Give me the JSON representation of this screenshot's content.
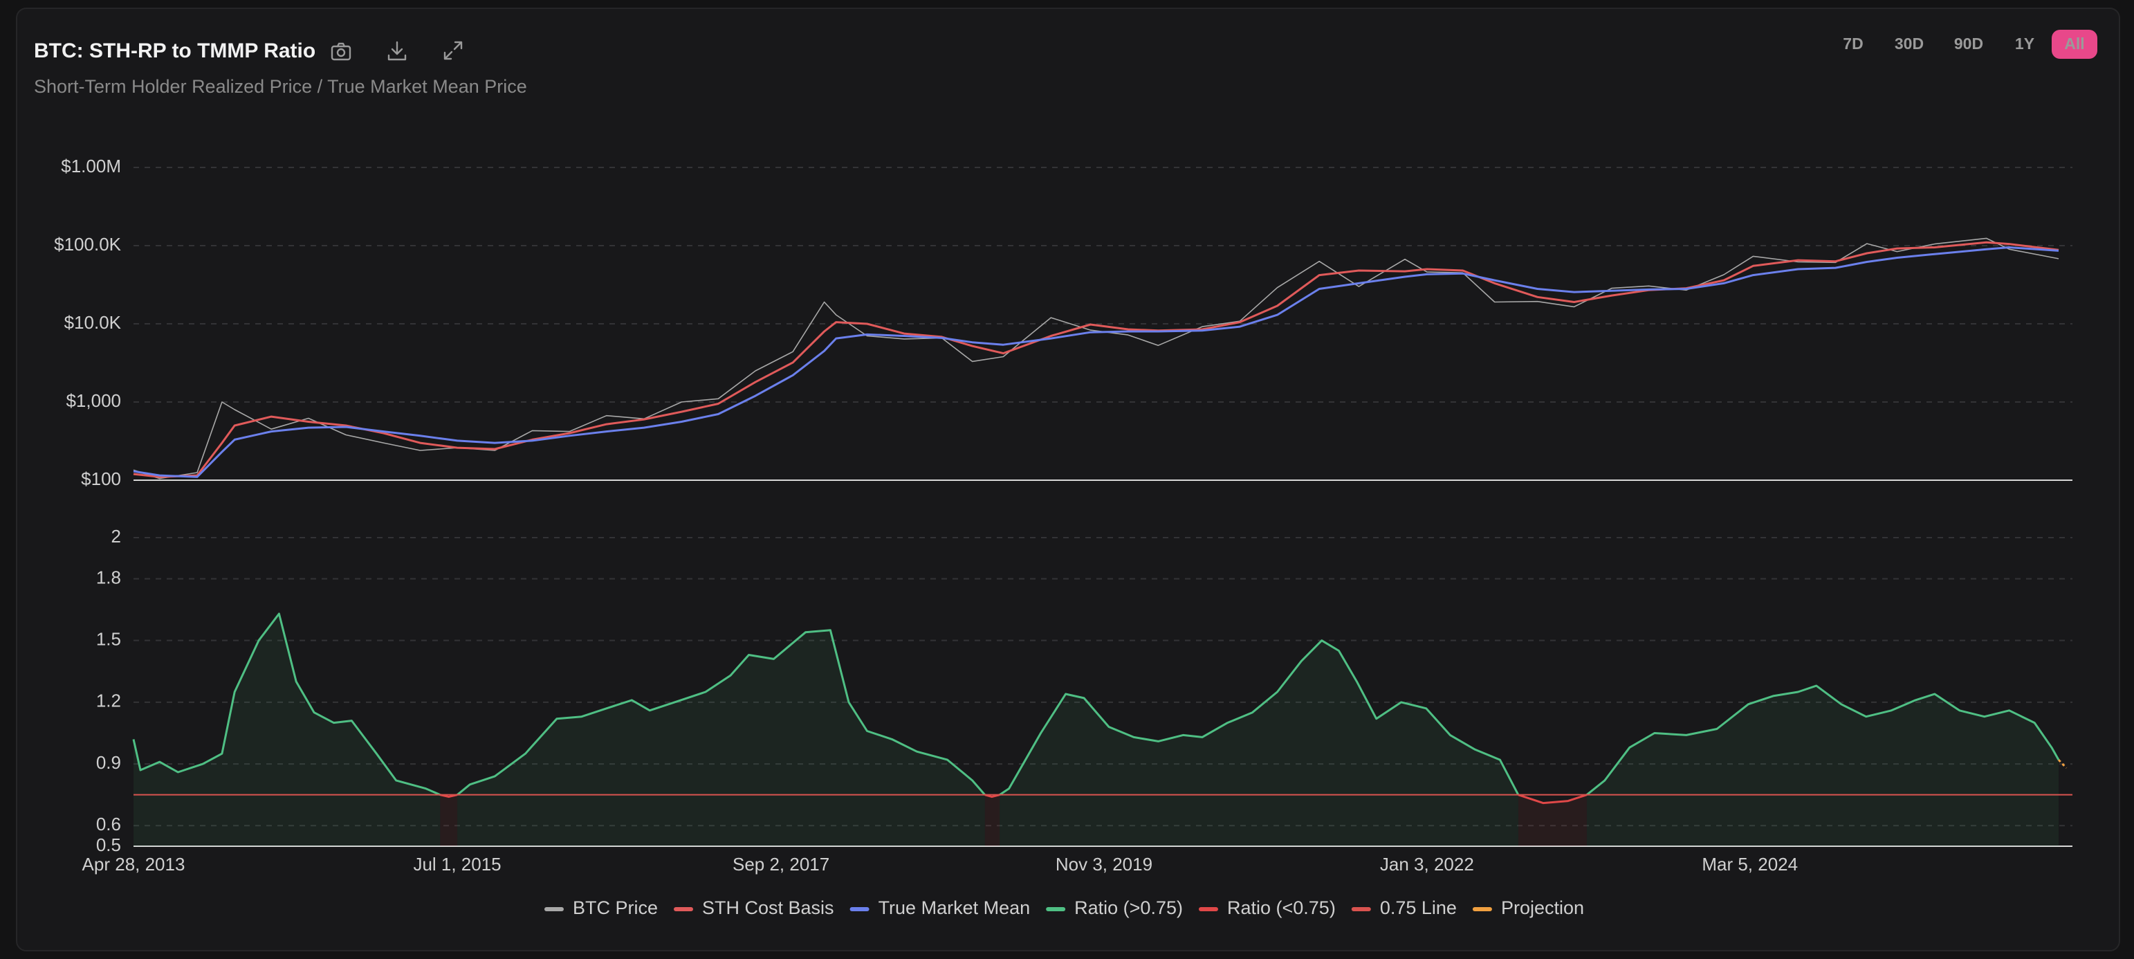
{
  "controls": {
    "ranges": [
      "7D",
      "30D",
      "90D",
      "1Y",
      "All"
    ],
    "selected": 4
  },
  "chart_data": [
    {
      "type": "line",
      "title": "BTC: STH-RP to TMMP Ratio",
      "subtitle": "Short-Term Holder Realized Price / True Market Mean Price",
      "log": true,
      "grid": true,
      "xlim": [
        "2013-04-28",
        "2026-05-05"
      ],
      "ylim": [
        100,
        1000000
      ],
      "yticks": [
        {
          "value": 100,
          "label": "$100"
        },
        {
          "value": 1000,
          "label": "$1,000"
        },
        {
          "value": 10000,
          "label": "$10.0K"
        },
        {
          "value": 100000,
          "label": "$100.0K"
        },
        {
          "value": 1000000,
          "label": "$1.00M"
        }
      ],
      "x": [
        "2013-04-28",
        "2013-07-01",
        "2013-10-01",
        "2013-12-01",
        "2014-01-01",
        "2014-04-01",
        "2014-07-01",
        "2014-10-01",
        "2015-01-01",
        "2015-04-01",
        "2015-07-01",
        "2015-10-01",
        "2016-01-01",
        "2016-04-01",
        "2016-07-01",
        "2016-10-01",
        "2017-01-01",
        "2017-04-01",
        "2017-07-01",
        "2017-10-01",
        "2017-12-17",
        "2018-01-15",
        "2018-04-01",
        "2018-07-01",
        "2018-10-01",
        "2018-12-15",
        "2019-03-01",
        "2019-06-26",
        "2019-10-01",
        "2020-01-01",
        "2020-03-15",
        "2020-07-01",
        "2020-10-01",
        "2021-01-01",
        "2021-04-14",
        "2021-07-20",
        "2021-11-10",
        "2022-01-03",
        "2022-04-01",
        "2022-06-18",
        "2022-10-01",
        "2022-12-30",
        "2023-04-01",
        "2023-07-01",
        "2023-10-01",
        "2024-01-01",
        "2024-03-13",
        "2024-07-01",
        "2024-10-01",
        "2024-12-17",
        "2025-03-01",
        "2025-06-01",
        "2025-10-06",
        "2025-12-01",
        "2026-04-01"
      ],
      "series": [
        {
          "name": "BTC Price",
          "color": "#a8a8a8",
          "values": [
            135,
            105,
            125,
            1000,
            800,
            450,
            620,
            380,
            300,
            240,
            260,
            240,
            430,
            420,
            670,
            610,
            1000,
            1100,
            2500,
            4400,
            19000,
            13000,
            7000,
            6400,
            6600,
            3300,
            3800,
            12000,
            8300,
            7200,
            5300,
            9200,
            10800,
            29000,
            63000,
            30000,
            67000,
            46000,
            45000,
            19000,
            19300,
            16500,
            28500,
            30500,
            27000,
            42500,
            73000,
            62000,
            61000,
            106000,
            84000,
            105000,
            124000,
            90000,
            68000
          ]
        },
        {
          "name": "STH Cost Basis",
          "color": "#e05a5a",
          "values": [
            120,
            110,
            115,
            300,
            500,
            650,
            560,
            500,
            400,
            300,
            260,
            250,
            330,
            400,
            520,
            600,
            750,
            950,
            1800,
            3200,
            8000,
            10500,
            10000,
            7500,
            6800,
            5200,
            4200,
            7000,
            9800,
            8500,
            8200,
            8500,
            10500,
            17000,
            42000,
            48000,
            47000,
            50000,
            48000,
            33000,
            22000,
            19000,
            23000,
            27000,
            28500,
            36000,
            55000,
            65000,
            63000,
            80000,
            92000,
            95000,
            110000,
            105000,
            88000
          ]
        },
        {
          "name": "True Market Mean",
          "color": "#6b80ec",
          "values": [
            130,
            115,
            110,
            230,
            330,
            420,
            470,
            480,
            420,
            370,
            320,
            300,
            320,
            370,
            420,
            470,
            560,
            700,
            1200,
            2200,
            4500,
            6500,
            7300,
            7000,
            6600,
            5800,
            5400,
            6500,
            7800,
            8000,
            8000,
            8200,
            9200,
            13000,
            28000,
            33000,
            40000,
            43000,
            44000,
            36000,
            28000,
            25500,
            26500,
            27500,
            28000,
            33000,
            42000,
            50000,
            52000,
            62000,
            70000,
            78000,
            90000,
            95000,
            86000
          ]
        }
      ]
    },
    {
      "type": "line",
      "grid": true,
      "fill": true,
      "xlim": [
        "2013-04-28",
        "2026-05-05"
      ],
      "ylim": [
        0.5,
        2
      ],
      "yticks": [
        0.5,
        0.6,
        0.9,
        1.2,
        1.5,
        1.8,
        2
      ],
      "xticks": [
        {
          "value": "2013-04-28",
          "label": "Apr 28, 2013"
        },
        {
          "value": "2015-07-01",
          "label": "Jul 1, 2015"
        },
        {
          "value": "2017-09-02",
          "label": "Sep 2, 2017"
        },
        {
          "value": "2019-11-03",
          "label": "Nov 3, 2019"
        },
        {
          "value": "2022-01-03",
          "label": "Jan 3, 2022"
        },
        {
          "value": "2024-03-05",
          "label": "Mar 5, 2024"
        }
      ],
      "x": [
        "2013-04-28",
        "2013-05-15",
        "2013-07-01",
        "2013-08-15",
        "2013-10-15",
        "2013-12-01",
        "2014-01-01",
        "2014-03-01",
        "2014-04-20",
        "2014-06-01",
        "2014-07-15",
        "2014-09-01",
        "2014-10-15",
        "2014-12-15",
        "2015-02-01",
        "2015-04-15",
        "2015-05-20",
        "2015-06-10",
        "2015-07-01",
        "2015-08-01",
        "2015-10-01",
        "2015-12-15",
        "2016-03-01",
        "2016-05-01",
        "2016-07-01",
        "2016-09-01",
        "2016-10-15",
        "2016-12-15",
        "2017-03-01",
        "2017-05-01",
        "2017-06-15",
        "2017-08-15",
        "2017-11-01",
        "2018-01-01",
        "2018-02-15",
        "2018-04-01",
        "2018-06-01",
        "2018-08-01",
        "2018-10-15",
        "2018-12-15",
        "2019-01-15",
        "2019-02-01",
        "2019-02-20",
        "2019-03-15",
        "2019-06-01",
        "2019-08-01",
        "2019-09-15",
        "2019-11-15",
        "2020-01-15",
        "2020-03-15",
        "2020-05-15",
        "2020-07-01",
        "2020-09-01",
        "2020-11-01",
        "2021-01-01",
        "2021-03-01",
        "2021-04-20",
        "2021-06-01",
        "2021-07-15",
        "2021-09-01",
        "2021-11-01",
        "2022-01-01",
        "2022-03-01",
        "2022-05-01",
        "2022-07-01",
        "2022-08-15",
        "2022-10-15",
        "2022-12-15",
        "2023-01-30",
        "2023-03-15",
        "2023-05-15",
        "2023-07-15",
        "2023-10-01",
        "2023-12-15",
        "2024-03-01",
        "2024-05-01",
        "2024-07-01",
        "2024-08-15",
        "2024-10-15",
        "2024-12-15",
        "2025-02-15",
        "2025-04-15",
        "2025-06-01",
        "2025-08-01",
        "2025-10-01",
        "2025-12-01",
        "2026-02-01",
        "2026-03-15",
        "2026-04-01"
      ],
      "series": [
        {
          "name": "Ratio (>0.75)",
          "color": "#4fbf84",
          "values": [
            1.02,
            0.87,
            0.91,
            0.86,
            0.9,
            0.95,
            1.25,
            1.5,
            1.63,
            1.3,
            1.15,
            1.1,
            1.11,
            0.95,
            0.82,
            0.78,
            0.75,
            null,
            0.75,
            0.8,
            0.84,
            0.95,
            1.12,
            1.13,
            1.17,
            1.21,
            1.16,
            1.2,
            1.25,
            1.33,
            1.43,
            1.41,
            1.54,
            1.55,
            1.2,
            1.06,
            1.02,
            0.96,
            0.92,
            0.82,
            0.75,
            null,
            0.75,
            0.78,
            1.05,
            1.24,
            1.22,
            1.08,
            1.03,
            1.01,
            1.04,
            1.03,
            1.1,
            1.15,
            1.25,
            1.4,
            1.5,
            1.45,
            1.3,
            1.12,
            1.2,
            1.17,
            1.04,
            0.97,
            0.92,
            0.75,
            null,
            null,
            0.75,
            0.82,
            0.98,
            1.05,
            1.04,
            1.07,
            1.19,
            1.23,
            1.25,
            1.28,
            1.19,
            1.13,
            1.16,
            1.21,
            1.24,
            1.16,
            1.13,
            1.16,
            1.1,
            0.98,
            0.92
          ]
        },
        {
          "name": "Ratio (<0.75)",
          "color": "#e04848",
          "values": [
            null,
            null,
            null,
            null,
            null,
            null,
            null,
            null,
            null,
            null,
            null,
            null,
            null,
            null,
            null,
            null,
            0.75,
            0.74,
            0.75,
            null,
            null,
            null,
            null,
            null,
            null,
            null,
            null,
            null,
            null,
            null,
            null,
            null,
            null,
            null,
            null,
            null,
            null,
            null,
            null,
            null,
            0.75,
            0.74,
            0.75,
            null,
            null,
            null,
            null,
            null,
            null,
            null,
            null,
            null,
            null,
            null,
            null,
            null,
            null,
            null,
            null,
            null,
            null,
            null,
            null,
            null,
            null,
            0.75,
            0.71,
            0.72,
            0.75,
            null,
            null,
            null,
            null,
            null,
            null,
            null,
            null,
            null,
            null,
            null,
            null,
            null,
            null,
            null,
            null,
            null,
            null,
            null,
            null
          ]
        },
        {
          "name": "0.75 Line",
          "color": "#d9534f",
          "value": 0.75
        },
        {
          "name": "Projection",
          "color": "#f0a040",
          "dash": true,
          "x": [
            "2026-04-01",
            "2026-04-20"
          ],
          "values": [
            0.92,
            0.88
          ]
        }
      ]
    }
  ]
}
